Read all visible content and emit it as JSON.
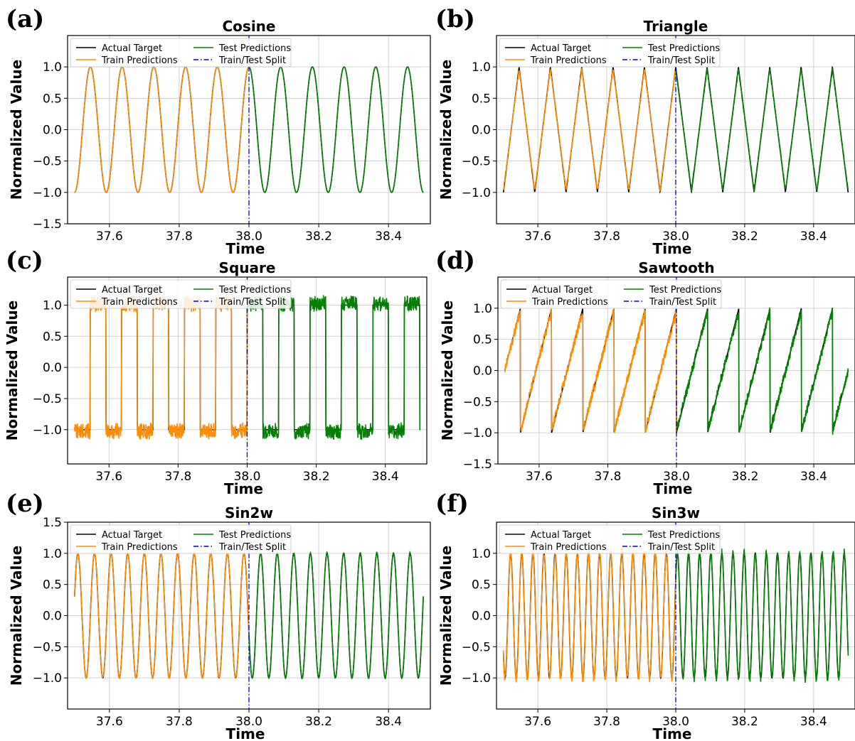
{
  "chart_data": [
    {
      "type": "line",
      "panel": "(a)",
      "title": "Cosine",
      "xlabel": "Time",
      "ylabel": "Normalized Value",
      "xlim": [
        37.48,
        38.52
      ],
      "ylim": [
        -1.5,
        1.5
      ],
      "xticks": [
        "37.6",
        "37.8",
        "38.0",
        "38.2",
        "38.4"
      ],
      "yticks": [
        "−1.5",
        "−1.0",
        "−0.5",
        "0.0",
        "0.5",
        "1.0"
      ],
      "yticks_values": [
        -1.5,
        -1.0,
        -0.5,
        0.0,
        0.5,
        1.0
      ],
      "waveform": "cosine",
      "cycles_per_unit": 11,
      "phase": 0.5,
      "x_start": 37.5,
      "x_end": 38.5,
      "split_x": 38.0,
      "noise": 0.0,
      "legend": [
        "Actual Target",
        "Train Predictions",
        "Test Predictions",
        "Train/Test Split"
      ]
    },
    {
      "type": "line",
      "panel": "(b)",
      "title": "Triangle",
      "xlabel": "Time",
      "ylabel": "Normalized Value",
      "xlim": [
        37.48,
        38.52
      ],
      "ylim": [
        -1.5,
        1.5
      ],
      "xticks": [
        "37.6",
        "37.8",
        "38.0",
        "38.2",
        "38.4"
      ],
      "yticks": [
        "−1.0",
        "−0.5",
        "0.0",
        "0.5",
        "1.0"
      ],
      "yticks_values": [
        -1.0,
        -0.5,
        0.0,
        0.5,
        1.0
      ],
      "waveform": "triangle",
      "cycles_per_unit": 11,
      "phase": 0.0,
      "x_start": 37.5,
      "x_end": 38.5,
      "split_x": 38.0,
      "noise": 0.03,
      "legend": [
        "Actual Target",
        "Train Predictions",
        "Test Predictions",
        "Train/Test Split"
      ]
    },
    {
      "type": "line",
      "panel": "(c)",
      "title": "Square",
      "xlabel": "Time",
      "ylabel": "Normalized Value",
      "xlim": [
        37.48,
        38.52
      ],
      "ylim": [
        -1.55,
        1.45
      ],
      "xticks": [
        "37.6",
        "37.8",
        "38.0",
        "38.2",
        "38.4"
      ],
      "yticks": [
        "−1.0",
        "−0.5",
        "0.0",
        "0.5",
        "1.0"
      ],
      "yticks_values": [
        -1.0,
        -0.5,
        0.0,
        0.5,
        1.0
      ],
      "waveform": "square",
      "cycles_per_unit": 11,
      "phase": 0.0,
      "x_start": 37.5,
      "x_end": 38.5,
      "split_x": 38.0,
      "noise": 0.12,
      "legend": [
        "Actual Target",
        "Train Predictions",
        "Test Predictions",
        "Train/Test Split"
      ]
    },
    {
      "type": "line",
      "panel": "(d)",
      "title": "Sawtooth",
      "xlabel": "Time",
      "ylabel": "Normalized Value",
      "xlim": [
        37.48,
        38.52
      ],
      "ylim": [
        -1.5,
        1.5
      ],
      "xticks": [
        "37.6",
        "37.8",
        "38.0",
        "38.2",
        "38.4"
      ],
      "yticks": [
        "−1.5",
        "−1.0",
        "−0.5",
        "0.0",
        "0.5",
        "1.0"
      ],
      "yticks_values": [
        -1.5,
        -1.0,
        -0.5,
        0.0,
        0.5,
        1.0
      ],
      "waveform": "sawtooth",
      "cycles_per_unit": 11,
      "phase": 0.5,
      "x_start": 37.5,
      "x_end": 38.5,
      "split_x": 38.0,
      "noise": 0.08,
      "legend": [
        "Actual Target",
        "Train Predictions",
        "Test Predictions",
        "Train/Test Split"
      ]
    },
    {
      "type": "line",
      "panel": "(e)",
      "title": "Sin2w",
      "xlabel": "Time",
      "ylabel": "Normalized Value",
      "xlim": [
        37.48,
        38.52
      ],
      "ylim": [
        -1.5,
        1.5
      ],
      "xticks": [
        "37.6",
        "37.8",
        "38.0",
        "38.2",
        "38.4"
      ],
      "yticks": [
        "−1.0",
        "−0.5",
        "0.0",
        "0.5",
        "1.0",
        "1.5"
      ],
      "yticks_values": [
        -1.0,
        -0.5,
        0.0,
        0.5,
        1.0,
        1.5
      ],
      "waveform": "sine",
      "cycles_per_unit": 21,
      "phase": 0.05,
      "x_start": 37.5,
      "x_end": 38.5,
      "split_x": 38.0,
      "noise": 0.02,
      "legend": [
        "Actual Target",
        "Train Predictions",
        "Test Predictions",
        "Train/Test Split"
      ]
    },
    {
      "type": "line",
      "panel": "(f)",
      "title": "Sin3w",
      "xlabel": "Time",
      "ylabel": "Normalized Value",
      "xlim": [
        37.48,
        38.52
      ],
      "ylim": [
        -1.5,
        1.5
      ],
      "xticks": [
        "37.6",
        "37.8",
        "38.0",
        "38.2",
        "38.4"
      ],
      "yticks": [
        "−1.0",
        "−0.5",
        "0.0",
        "0.5",
        "1.0"
      ],
      "yticks_values": [
        -1.0,
        -0.5,
        0.0,
        0.5,
        1.0
      ],
      "waveform": "sine",
      "cycles_per_unit": 31,
      "phase": 0.6,
      "x_start": 37.5,
      "x_end": 38.5,
      "split_x": 38.0,
      "noise": 0.08,
      "legend": [
        "Actual Target",
        "Train Predictions",
        "Test Predictions",
        "Train/Test Split"
      ]
    }
  ],
  "colors": {
    "actual": "#000000",
    "train": "#ff8c00",
    "test": "#008000",
    "split": "#0000cd"
  }
}
